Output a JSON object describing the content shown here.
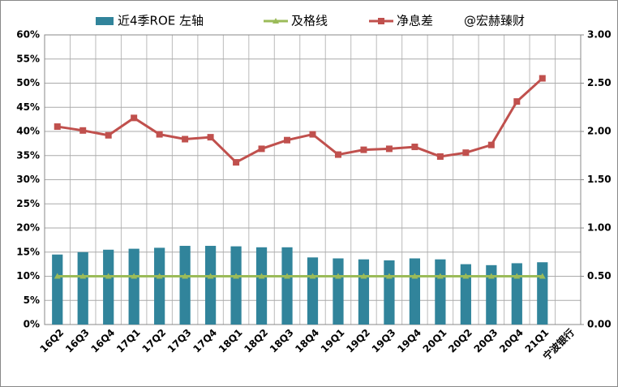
{
  "chart_data": {
    "type": "bar-line",
    "categories": [
      "16Q2",
      "16Q3",
      "16Q4",
      "17Q1",
      "17Q2",
      "17Q3",
      "17Q4",
      "18Q1",
      "18Q2",
      "18Q3",
      "18Q4",
      "19Q1",
      "19Q2",
      "19Q3",
      "19Q4",
      "20Q1",
      "20Q2",
      "20Q3",
      "20Q4",
      "21Q1",
      "宁波银行"
    ],
    "series": [
      {
        "name": "近4季ROE 左轴",
        "type": "bar",
        "color": "#31849b",
        "values": [
          14.5,
          15,
          15.5,
          15.7,
          15.9,
          16.3,
          16.3,
          16.2,
          16,
          16,
          13.9,
          13.7,
          13.5,
          13.3,
          13.7,
          13.5,
          12.5,
          12.3,
          12.7,
          12.9,
          null
        ]
      },
      {
        "name": "及格线",
        "type": "line",
        "marker": "triangle",
        "color": "#9bbb59",
        "values": [
          10,
          10,
          10,
          10,
          10,
          10,
          10,
          10,
          10,
          10,
          10,
          10,
          10,
          10,
          10,
          10,
          10,
          10,
          10,
          10,
          null
        ]
      },
      {
        "name": "净息差",
        "type": "line",
        "marker": "square",
        "axis": "y2",
        "color": "#c0504d",
        "values": [
          2.05,
          2.01,
          1.96,
          2.14,
          1.97,
          1.92,
          1.94,
          1.68,
          1.82,
          1.91,
          1.97,
          1.76,
          1.81,
          1.82,
          1.84,
          1.74,
          1.78,
          1.86,
          2.31,
          2.55,
          null
        ]
      }
    ],
    "legend_note": "@宏赫臻财",
    "ylim": [
      0,
      60
    ],
    "yticks": [
      {
        "value": 0,
        "label": "0%"
      },
      {
        "value": 5,
        "label": "5%"
      },
      {
        "value": 10,
        "label": "10%"
      },
      {
        "value": 15,
        "label": "15%"
      },
      {
        "value": 20,
        "label": "20%"
      },
      {
        "value": 25,
        "label": "25%"
      },
      {
        "value": 30,
        "label": "30%"
      },
      {
        "value": 35,
        "label": "35%"
      },
      {
        "value": 40,
        "label": "40%"
      },
      {
        "value": 45,
        "label": "45%"
      },
      {
        "value": 50,
        "label": "50%"
      },
      {
        "value": 55,
        "label": "55%"
      },
      {
        "value": 60,
        "label": "60%"
      }
    ],
    "y2lim": [
      0,
      3
    ],
    "y2ticks": [
      {
        "value": 0,
        "label": "0.00"
      },
      {
        "value": 0.5,
        "label": "0.50"
      },
      {
        "value": 1,
        "label": "1.00"
      },
      {
        "value": 1.5,
        "label": "1.50"
      },
      {
        "value": 2,
        "label": "2.00"
      },
      {
        "value": 2.5,
        "label": "2.50"
      },
      {
        "value": 3,
        "label": "3.00"
      }
    ],
    "grid": true
  }
}
